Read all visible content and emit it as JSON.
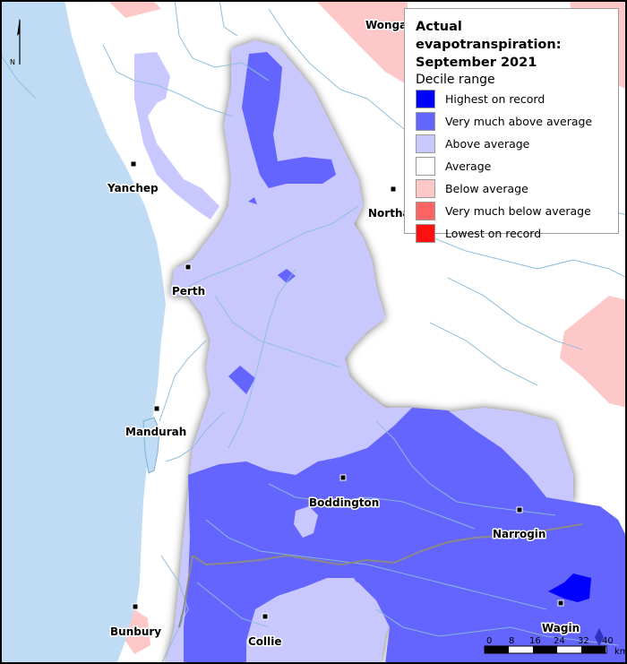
{
  "legend": {
    "title_line1": "Actual evapotranspiration:",
    "title_line2": "September 2021",
    "subtitle": "Decile range",
    "items": [
      {
        "label": "Highest on record",
        "color": "#0000ff"
      },
      {
        "label": "Very much above average",
        "color": "#6464ff"
      },
      {
        "label": "Above average",
        "color": "#c8c8ff"
      },
      {
        "label": "Average",
        "color": "#ffffff"
      },
      {
        "label": "Below average",
        "color": "#ffc8c8"
      },
      {
        "label": "Very much below average",
        "color": "#ff6464"
      },
      {
        "label": "Lowest on record",
        "color": "#ff1010"
      }
    ]
  },
  "towns": {
    "wongan": "Wongan",
    "yanchep": "Yanchep",
    "northam": "Northam",
    "perth": "Perth",
    "mandurah": "Mandurah",
    "boddington": "Boddington",
    "narrogin": "Narrogin",
    "bunbury": "Bunbury",
    "collie": "Collie",
    "wagin": "Wagin"
  },
  "north_arrow": {
    "letter": "N"
  },
  "scale_bar": {
    "ticks": [
      "0",
      "8",
      "16",
      "24",
      "32",
      "40"
    ],
    "unit": "km"
  },
  "colors": {
    "ocean": "#c0dcf5",
    "land": "#ffffff",
    "rivers": "#8fbcd8"
  }
}
